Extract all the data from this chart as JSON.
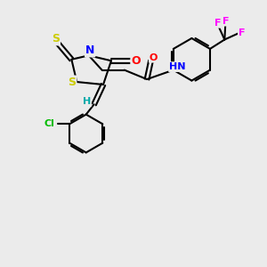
{
  "background_color": "#ebebeb",
  "atom_colors": {
    "S": "#cccc00",
    "N": "#0000ff",
    "O": "#ff0000",
    "F": "#ff00ff",
    "Cl": "#00bb00",
    "H": "#00aaaa",
    "C": "#000000"
  },
  "figsize": [
    3.0,
    3.0
  ],
  "dpi": 100
}
